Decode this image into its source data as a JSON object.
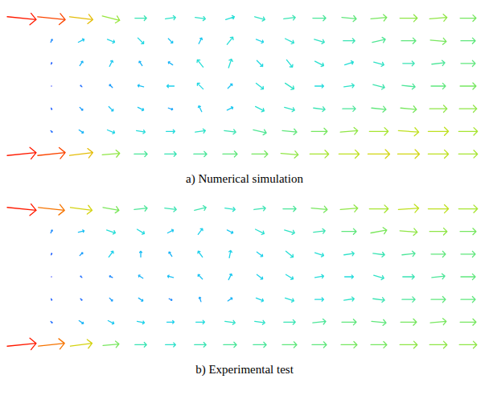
{
  "chart_data": [
    {
      "type": "vector",
      "caption": "a) Numerical simulation",
      "tick_labels": false,
      "xlim": [
        0,
        16
      ],
      "ylim": [
        0,
        7
      ],
      "speed_range": [
        0,
        1
      ],
      "x": [
        0.5,
        1.5,
        2.5,
        3.5,
        4.5,
        5.5,
        6.5,
        7.5,
        8.5,
        9.5,
        10.5,
        11.5,
        12.5,
        13.5,
        14.5,
        15.5
      ],
      "y": [
        6.5,
        5.5,
        4.5,
        3.5,
        2.5,
        1.5,
        0.5
      ],
      "u": [
        [
          1.0,
          0.95,
          0.8,
          0.6,
          0.4,
          0.35,
          0.35,
          0.3,
          0.35,
          0.4,
          0.45,
          0.5,
          0.55,
          0.6,
          0.6,
          0.55
        ],
        [
          null,
          0.05,
          0.2,
          0.25,
          0.2,
          0.15,
          0.1,
          0.2,
          0.25,
          0.3,
          0.35,
          0.4,
          0.45,
          0.5,
          0.55,
          0.5
        ],
        [
          null,
          0.02,
          0.1,
          0.1,
          -0.1,
          -0.15,
          -0.2,
          0.1,
          0.2,
          0.2,
          0.3,
          0.3,
          0.35,
          0.4,
          0.45,
          0.5
        ],
        [
          null,
          0.0,
          -0.05,
          -0.1,
          -0.2,
          -0.25,
          -0.2,
          0.15,
          0.25,
          0.3,
          0.3,
          0.35,
          0.4,
          0.45,
          0.5,
          0.55
        ],
        [
          null,
          0.02,
          0.1,
          0.15,
          0.2,
          0.15,
          -0.1,
          0.2,
          0.3,
          0.35,
          0.4,
          0.45,
          0.5,
          0.55,
          0.6,
          0.6
        ],
        [
          null,
          0.05,
          0.15,
          0.25,
          0.3,
          0.3,
          0.35,
          0.4,
          0.45,
          0.5,
          0.55,
          0.6,
          0.65,
          0.7,
          0.7,
          0.65
        ],
        [
          1.0,
          0.95,
          0.8,
          0.6,
          0.45,
          0.4,
          0.45,
          0.5,
          0.55,
          0.6,
          0.65,
          0.7,
          0.75,
          0.75,
          0.7,
          0.65
        ]
      ],
      "v": [
        [
          -0.1,
          -0.1,
          -0.1,
          -0.15,
          0,
          0.05,
          -0.05,
          0.1,
          -0.1,
          0.05,
          0,
          -0.05,
          0.05,
          0,
          0.05,
          0
        ],
        [
          null,
          0.1,
          0.1,
          -0.1,
          -0.2,
          -0.15,
          0.2,
          0.25,
          -0.1,
          -0.15,
          -0.1,
          0,
          0.1,
          0,
          -0.05,
          0
        ],
        [
          null,
          0.05,
          0.15,
          0.2,
          0.15,
          0.1,
          0.25,
          0.3,
          -0.2,
          -0.25,
          -0.15,
          0.1,
          -0.1,
          0,
          0.05,
          0
        ],
        [
          null,
          0,
          0.05,
          0.1,
          0.05,
          0,
          0.2,
          0.15,
          -0.2,
          -0.2,
          0,
          0.05,
          -0.1,
          -0.05,
          0,
          0
        ],
        [
          null,
          -0.05,
          -0.1,
          -0.15,
          -0.1,
          -0.05,
          0.2,
          0.1,
          -0.15,
          -0.1,
          -0.05,
          0,
          -0.05,
          -0.05,
          0,
          0
        ],
        [
          null,
          -0.05,
          -0.1,
          -0.1,
          -0.05,
          0,
          0.05,
          -0.05,
          -0.1,
          -0.05,
          0,
          0.05,
          0,
          -0.05,
          0,
          0
        ],
        [
          0.1,
          0.1,
          0.1,
          0.05,
          0,
          0,
          0,
          0,
          0,
          -0.05,
          0,
          0,
          0,
          0,
          0,
          0
        ]
      ]
    },
    {
      "type": "vector",
      "caption": "b) Experimental test",
      "tick_labels": false,
      "xlim": [
        0,
        16
      ],
      "ylim": [
        0,
        7
      ],
      "speed_range": [
        0,
        1
      ],
      "x": [
        0.5,
        1.5,
        2.5,
        3.5,
        4.5,
        5.5,
        6.5,
        7.5,
        8.5,
        9.5,
        10.5,
        11.5,
        12.5,
        13.5,
        14.5,
        15.5
      ],
      "y": [
        6.5,
        5.5,
        4.5,
        3.5,
        2.5,
        1.5,
        0.5
      ],
      "u": [
        [
          1.0,
          0.9,
          0.75,
          0.55,
          0.45,
          0.4,
          0.4,
          0.35,
          0.4,
          0.45,
          0.55,
          0.6,
          0.65,
          0.7,
          0.7,
          0.65
        ],
        [
          null,
          0.05,
          0.2,
          0.3,
          0.25,
          0.2,
          0.15,
          0.2,
          0.3,
          0.35,
          0.4,
          0.5,
          0.55,
          0.6,
          0.6,
          0.55
        ],
        [
          null,
          0.02,
          0.1,
          0.15,
          0.0,
          -0.1,
          -0.15,
          0.05,
          0.2,
          0.25,
          0.3,
          0.35,
          0.4,
          0.45,
          0.5,
          0.5
        ],
        [
          null,
          0.0,
          -0.05,
          -0.1,
          -0.15,
          -0.2,
          -0.15,
          0.1,
          0.2,
          0.25,
          0.3,
          0.3,
          0.35,
          0.4,
          0.45,
          0.5
        ],
        [
          null,
          0.02,
          0.05,
          0.1,
          0.15,
          0.1,
          -0.05,
          0.15,
          0.25,
          0.3,
          0.3,
          0.35,
          0.4,
          0.45,
          0.5,
          0.5
        ],
        [
          null,
          0.05,
          0.15,
          0.2,
          0.25,
          0.25,
          0.3,
          0.35,
          0.35,
          0.4,
          0.45,
          0.5,
          0.5,
          0.55,
          0.55,
          0.55
        ],
        [
          1.0,
          0.9,
          0.75,
          0.55,
          0.4,
          0.35,
          0.4,
          0.45,
          0.45,
          0.5,
          0.5,
          0.55,
          0.55,
          0.6,
          0.6,
          0.6
        ]
      ],
      "v": [
        [
          -0.1,
          -0.1,
          -0.1,
          -0.1,
          0.05,
          -0.05,
          0.1,
          -0.05,
          0.05,
          0,
          -0.05,
          0.05,
          0,
          0.05,
          0,
          0
        ],
        [
          null,
          0.1,
          0.05,
          -0.1,
          -0.15,
          0.1,
          0.2,
          -0.1,
          -0.15,
          -0.1,
          0.05,
          0,
          0.1,
          -0.05,
          0,
          0
        ],
        [
          null,
          0.05,
          0.1,
          0.2,
          0.2,
          0.15,
          0.2,
          0.25,
          -0.15,
          -0.2,
          -0.1,
          0.05,
          -0.05,
          0.05,
          0,
          0
        ],
        [
          null,
          0,
          0.05,
          0.05,
          0.1,
          0.05,
          0.15,
          0.2,
          -0.15,
          -0.15,
          0.05,
          0,
          -0.1,
          0,
          0.05,
          0
        ],
        [
          null,
          -0.05,
          -0.05,
          -0.1,
          -0.1,
          -0.05,
          0.15,
          0.1,
          -0.1,
          -0.1,
          0,
          0.05,
          -0.05,
          0,
          0,
          0
        ],
        [
          null,
          -0.05,
          -0.1,
          -0.1,
          -0.05,
          0,
          0,
          -0.05,
          -0.05,
          0,
          0.05,
          0,
          -0.05,
          0,
          0.05,
          0
        ],
        [
          0.1,
          0.1,
          0.1,
          0.05,
          0,
          0,
          0,
          0,
          0,
          0,
          0,
          0,
          0,
          0,
          0,
          0
        ]
      ]
    }
  ]
}
